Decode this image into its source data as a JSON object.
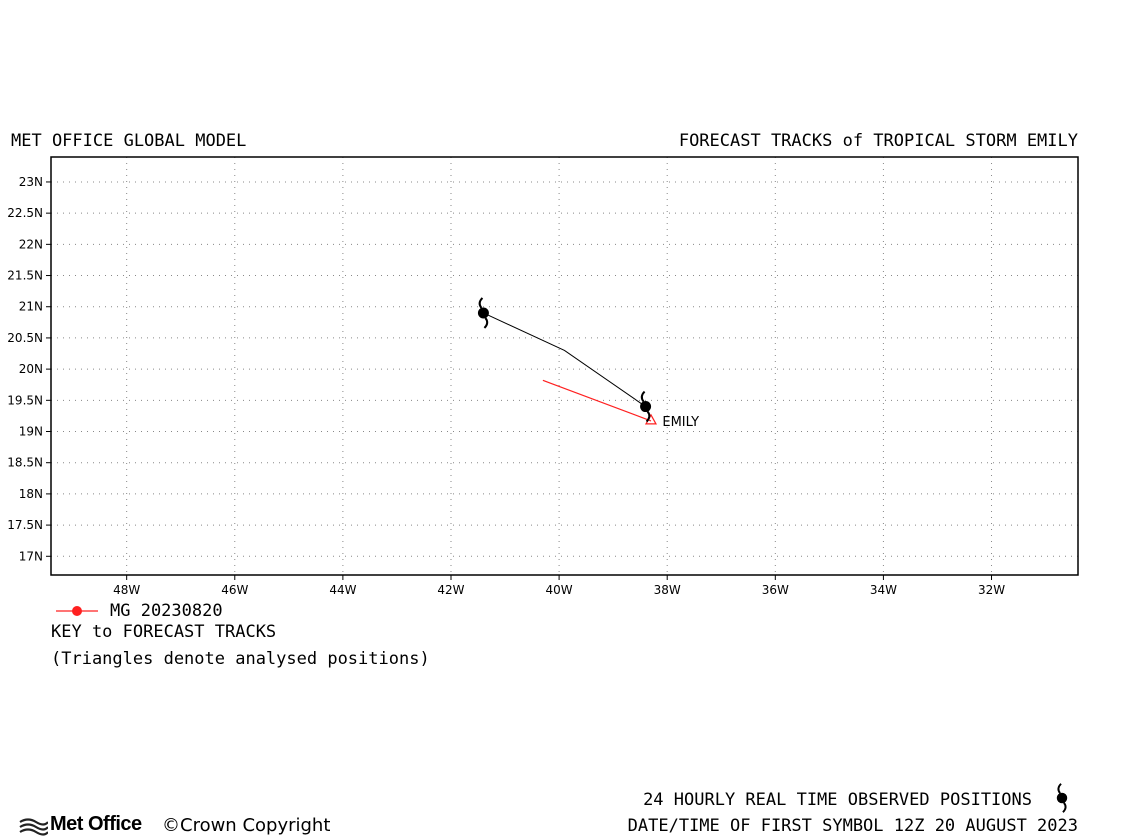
{
  "header": {
    "left_title": "MET OFFICE GLOBAL MODEL",
    "right_title": "FORECAST TRACKS of TROPICAL STORM EMILY"
  },
  "map": {
    "lon_range": [
      -49.4,
      -30.4
    ],
    "lat_range": [
      16.7,
      23.4
    ],
    "lon_ticks": [
      {
        "value": -48,
        "label": "48W"
      },
      {
        "value": -46,
        "label": "46W"
      },
      {
        "value": -44,
        "label": "44W"
      },
      {
        "value": -42,
        "label": "42W"
      },
      {
        "value": -40,
        "label": "40W"
      },
      {
        "value": -38,
        "label": "38W"
      },
      {
        "value": -36,
        "label": "36W"
      },
      {
        "value": -34,
        "label": "34W"
      },
      {
        "value": -32,
        "label": "32W"
      }
    ],
    "lat_ticks": [
      {
        "value": 17,
        "label": "17N"
      },
      {
        "value": 17.5,
        "label": "17.5N"
      },
      {
        "value": 18,
        "label": "18N"
      },
      {
        "value": 18.5,
        "label": "18.5N"
      },
      {
        "value": 19,
        "label": "19N"
      },
      {
        "value": 19.5,
        "label": "19.5N"
      },
      {
        "value": 20,
        "label": "20N"
      },
      {
        "value": 20.5,
        "label": "20.5N"
      },
      {
        "value": 21,
        "label": "21N"
      },
      {
        "value": 21.5,
        "label": "21.5N"
      },
      {
        "value": 22,
        "label": "22N"
      },
      {
        "value": 22.5,
        "label": "22.5N"
      },
      {
        "value": 23,
        "label": "23N"
      }
    ],
    "grid": "dotted",
    "observed_track": {
      "color": "#000000",
      "points": [
        [
          -38.4,
          19.4
        ],
        [
          -39.9,
          20.3
        ],
        [
          -41.4,
          20.9
        ]
      ],
      "symbol_points": [
        [
          -38.4,
          19.4
        ],
        [
          -41.4,
          20.9
        ]
      ]
    },
    "forecast_track": {
      "color": "#ff2020",
      "points": [
        [
          -38.3,
          19.17
        ],
        [
          -40.3,
          19.82
        ]
      ]
    },
    "storm_label": {
      "text": "EMILY",
      "lon": -38.2,
      "lat": 19.15
    }
  },
  "legend": {
    "color": "#ff2020",
    "label": "MG 20230820",
    "key_title": "KEY to FORECAST TRACKS",
    "key_note": "(Triangles denote analysed positions)"
  },
  "footer": {
    "observed_note": "24 HOURLY REAL TIME OBSERVED POSITIONS",
    "first_symbol": "DATE/TIME OF FIRST SYMBOL 12Z 20 AUGUST 2023",
    "logo_text": "Met Office",
    "copyright": "Crown Copyright"
  }
}
